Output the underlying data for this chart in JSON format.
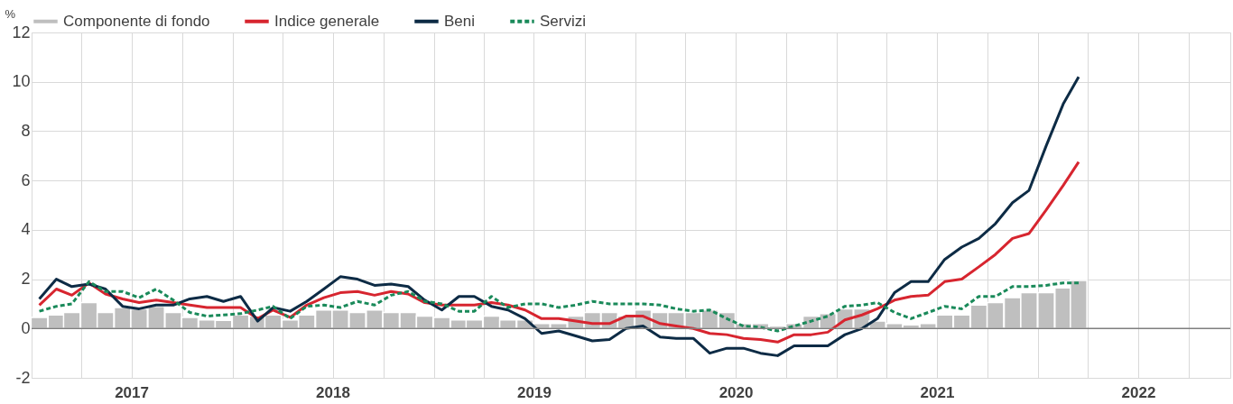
{
  "chart_data": {
    "type": "line",
    "ylabel": "%",
    "x": [
      "2017-01-15",
      "2017-02-15",
      "2017-03-15",
      "2017-04-15",
      "2017-05-15",
      "2017-06-15",
      "2017-07-15",
      "2017-08-15",
      "2017-09-15",
      "2017-10-15",
      "2017-11-15",
      "2017-12-15",
      "2018-01-15",
      "2018-02-15",
      "2018-03-15",
      "2018-04-15",
      "2018-05-15",
      "2018-06-15",
      "2018-07-15",
      "2018-08-15",
      "2018-09-15",
      "2018-10-15",
      "2018-11-15",
      "2018-12-15",
      "2019-01-15",
      "2019-02-15",
      "2019-03-15",
      "2019-04-15",
      "2019-05-15",
      "2019-06-15",
      "2019-07-15",
      "2019-08-15",
      "2019-09-15",
      "2019-10-15",
      "2019-11-15",
      "2019-12-15",
      "2020-01-15",
      "2020-02-15",
      "2020-03-15",
      "2020-04-15",
      "2020-05-15",
      "2020-06-15",
      "2020-07-15",
      "2020-08-15",
      "2020-09-15",
      "2020-10-15",
      "2020-11-15",
      "2020-12-15",
      "2021-01-15",
      "2021-02-15",
      "2021-03-15",
      "2021-04-15",
      "2021-05-15",
      "2021-06-15",
      "2021-07-15",
      "2021-08-15",
      "2021-09-15",
      "2021-10-15",
      "2021-11-15",
      "2021-12-15",
      "2022-01-15",
      "2022-02-15",
      "2022-03-15"
    ],
    "series": [
      {
        "name": "Componente di fondo",
        "type": "bar",
        "color": "#bfbfbf",
        "values": [
          0.45,
          0.55,
          0.65,
          1.05,
          0.65,
          0.85,
          0.8,
          0.9,
          0.65,
          0.45,
          0.35,
          0.33,
          0.55,
          0.5,
          0.55,
          0.35,
          0.55,
          0.75,
          0.75,
          0.65,
          0.75,
          0.65,
          0.65,
          0.5,
          0.45,
          0.35,
          0.35,
          0.5,
          0.35,
          0.35,
          0.2,
          0.2,
          0.5,
          0.65,
          0.65,
          0.5,
          0.75,
          0.65,
          0.65,
          0.65,
          0.75,
          0.65,
          0.2,
          0.2,
          0.1,
          0.2,
          0.5,
          0.6,
          0.8,
          0.8,
          0.3,
          0.2,
          0.15,
          0.2,
          0.55,
          0.55,
          0.95,
          1.05,
          1.25,
          1.45,
          1.45,
          1.65,
          1.95
        ]
      },
      {
        "name": "Indice generale",
        "color": "#d7252f",
        "line_style": "solid",
        "values": [
          0.95,
          1.6,
          1.35,
          1.85,
          1.4,
          1.2,
          1.05,
          1.15,
          1.05,
          0.95,
          0.85,
          0.85,
          0.85,
          0.4,
          0.75,
          0.45,
          0.95,
          1.25,
          1.45,
          1.5,
          1.35,
          1.5,
          1.4,
          1.05,
          0.95,
          0.95,
          0.95,
          1.05,
          0.95,
          0.75,
          0.4,
          0.4,
          0.3,
          0.2,
          0.2,
          0.5,
          0.5,
          0.2,
          0.1,
          0.0,
          -0.2,
          -0.25,
          -0.4,
          -0.45,
          -0.55,
          -0.25,
          -0.25,
          -0.15,
          0.35,
          0.55,
          0.8,
          1.15,
          1.3,
          1.35,
          1.9,
          2.0,
          2.5,
          3.0,
          3.65,
          3.85,
          4.8,
          5.8,
          6.75
        ]
      },
      {
        "name": "Beni",
        "color": "#0d2b45",
        "line_style": "solid",
        "values": [
          1.2,
          2.0,
          1.7,
          1.8,
          1.6,
          0.9,
          0.8,
          0.95,
          0.95,
          1.2,
          1.3,
          1.1,
          1.3,
          0.3,
          0.85,
          0.7,
          1.1,
          1.6,
          2.1,
          2.0,
          1.75,
          1.8,
          1.7,
          1.15,
          0.75,
          1.3,
          1.3,
          0.9,
          0.75,
          0.4,
          -0.2,
          -0.1,
          -0.3,
          -0.5,
          -0.45,
          0.0,
          0.1,
          -0.35,
          -0.4,
          -0.4,
          -1.0,
          -0.8,
          -0.8,
          -1.0,
          -1.1,
          -0.7,
          -0.7,
          -0.7,
          -0.25,
          0.0,
          0.4,
          1.45,
          1.9,
          1.9,
          2.8,
          3.3,
          3.65,
          4.25,
          5.1,
          5.6,
          7.4,
          9.1,
          10.2
        ]
      },
      {
        "name": "Servizi",
        "color": "#1a8a5a",
        "line_style": "dashed",
        "values": [
          0.7,
          0.9,
          1.0,
          1.9,
          1.5,
          1.5,
          1.25,
          1.6,
          1.15,
          0.65,
          0.5,
          0.55,
          0.6,
          0.75,
          0.9,
          0.4,
          0.9,
          0.95,
          0.85,
          1.1,
          0.95,
          1.35,
          1.5,
          1.1,
          1.0,
          0.7,
          0.7,
          1.3,
          0.85,
          1.0,
          1.0,
          0.85,
          0.95,
          1.1,
          1.0,
          1.0,
          1.0,
          0.95,
          0.8,
          0.7,
          0.75,
          0.4,
          0.1,
          0.05,
          -0.1,
          0.1,
          0.3,
          0.5,
          0.9,
          0.95,
          1.05,
          0.65,
          0.4,
          0.65,
          0.9,
          0.8,
          1.3,
          1.3,
          1.7,
          1.7,
          1.75,
          1.85,
          1.85
        ]
      }
    ],
    "xlim": [
      "2017-01",
      "2022-12-15"
    ],
    "xticks": [
      {
        "value": "2017-01",
        "label": null
      },
      {
        "value": "2017-04",
        "label": null
      },
      {
        "value": "2017-07",
        "label": "2017"
      },
      {
        "value": "2017-10",
        "label": null
      },
      {
        "value": "2018-01",
        "label": null
      },
      {
        "value": "2018-04",
        "label": null
      },
      {
        "value": "2018-07",
        "label": "2018"
      },
      {
        "value": "2018-10",
        "label": null
      },
      {
        "value": "2019-01",
        "label": null
      },
      {
        "value": "2019-04",
        "label": null
      },
      {
        "value": "2019-07",
        "label": "2019"
      },
      {
        "value": "2019-10",
        "label": null
      },
      {
        "value": "2020-01",
        "label": null
      },
      {
        "value": "2020-04",
        "label": null
      },
      {
        "value": "2020-07",
        "label": "2020"
      },
      {
        "value": "2020-10",
        "label": null
      },
      {
        "value": "2021-01",
        "label": null
      },
      {
        "value": "2021-04",
        "label": null
      },
      {
        "value": "2021-07",
        "label": "2021"
      },
      {
        "value": "2021-10",
        "label": null
      },
      {
        "value": "2022-01",
        "label": null
      },
      {
        "value": "2022-04",
        "label": null
      },
      {
        "value": "2022-07",
        "label": "2022"
      },
      {
        "value": "2022-10",
        "label": null
      }
    ],
    "ylim": [
      -2,
      12
    ],
    "yticks": [
      -2,
      0,
      2,
      4,
      6,
      8,
      10,
      12
    ],
    "ref_lines": [
      {
        "axis": "y",
        "value": 0,
        "color": "#7f7f7f"
      }
    ],
    "grid": true,
    "legend": "top"
  }
}
